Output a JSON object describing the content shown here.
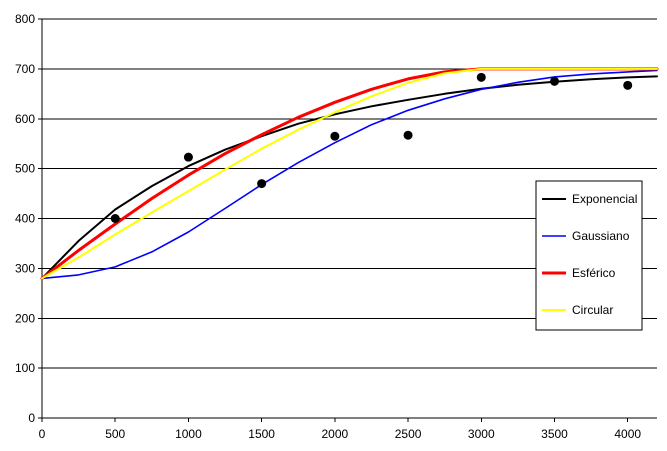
{
  "chart_data": {
    "type": "line",
    "title": "",
    "xlabel": "",
    "ylabel": "",
    "xlim": [
      0,
      4200
    ],
    "ylim": [
      0,
      800
    ],
    "x_ticks": [
      0,
      500,
      1000,
      1500,
      2000,
      2500,
      3000,
      3500,
      4000
    ],
    "y_ticks": [
      0,
      100,
      200,
      300,
      400,
      500,
      600,
      700,
      800
    ],
    "grid": "horizontal",
    "legend_position": "right",
    "points": {
      "color": "#000000",
      "x": [
        500,
        1000,
        1500,
        2000,
        2500,
        3000,
        3500,
        4000
      ],
      "y": [
        400,
        523,
        470,
        565,
        567,
        683,
        675,
        667
      ]
    },
    "series": [
      {
        "name": "Exponencial",
        "color": "#000000",
        "x": [
          0,
          250,
          500,
          750,
          1000,
          1250,
          1500,
          1750,
          2000,
          2250,
          2500,
          2750,
          3000,
          3250,
          3500,
          3750,
          4000,
          4200
        ],
        "y": [
          280,
          355,
          418,
          465,
          505,
          538,
          565,
          590,
          609,
          625,
          638,
          650,
          660,
          668,
          674,
          679,
          683,
          685
        ]
      },
      {
        "name": "Gaussiano",
        "color": "#0000ff",
        "x": [
          0,
          250,
          500,
          750,
          1000,
          1250,
          1500,
          1750,
          2000,
          2250,
          2500,
          2750,
          3000,
          3250,
          3500,
          3750,
          4000,
          4200
        ],
        "y": [
          280,
          287,
          303,
          333,
          373,
          420,
          468,
          512,
          552,
          588,
          617,
          640,
          659,
          673,
          684,
          690,
          694,
          697
        ]
      },
      {
        "name": "Esférico",
        "color": "#ff0000",
        "x": [
          0,
          250,
          500,
          750,
          1000,
          1250,
          1500,
          1750,
          2000,
          2250,
          2500,
          2750,
          3000,
          4200
        ],
        "y": [
          280,
          336,
          389,
          440,
          487,
          530,
          568,
          603,
          633,
          659,
          680,
          694,
          700,
          700
        ]
      },
      {
        "name": "Circular",
        "color": "#ffff00",
        "x": [
          0,
          250,
          500,
          750,
          1000,
          1250,
          1500,
          1750,
          2000,
          2250,
          2500,
          2750,
          3000,
          4200
        ],
        "y": [
          280,
          322,
          368,
          412,
          455,
          498,
          540,
          578,
          613,
          645,
          672,
          691,
          700,
          700
        ]
      }
    ]
  }
}
